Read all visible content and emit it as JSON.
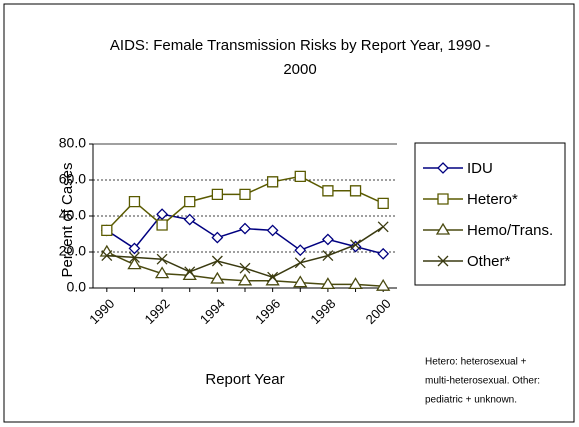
{
  "chart_data": {
    "type": "line",
    "title": [
      "AIDS: Female Transmission Risks by Report Year, 1990 -",
      "2000"
    ],
    "y_label": "Percent of Cases",
    "x_label": "Report Year",
    "note": [
      "Hetero: heterosexual +",
      "multi-heterosexual.  Other:",
      "pediatric + unknown."
    ],
    "categories": [
      "1990",
      null,
      "1992",
      null,
      "1994",
      null,
      "1996",
      null,
      "1998",
      null,
      "2000"
    ],
    "ylim": [
      0,
      80
    ],
    "yticks": [
      {
        "value": 0,
        "label": "0.0"
      },
      {
        "value": 20,
        "label": "20.0"
      },
      {
        "value": 40,
        "label": "40.0"
      },
      {
        "value": 60,
        "label": "60.0"
      },
      {
        "value": 80,
        "label": "80.0"
      }
    ],
    "grid": true,
    "legend": "right",
    "series": [
      {
        "name": "IDU",
        "color": "#000080",
        "marker": "diamond",
        "values": [
          32,
          22,
          41,
          38,
          28,
          33,
          32,
          21,
          27,
          23,
          19
        ]
      },
      {
        "name": "Hetero*",
        "color": "#5a5a00",
        "marker": "square",
        "values": [
          32,
          48,
          35,
          48,
          52,
          52,
          59,
          62,
          54,
          54,
          47
        ]
      },
      {
        "name": "Hemo/Trans.",
        "color": "#4a4a10",
        "marker": "triangle",
        "values": [
          20,
          13,
          8,
          7,
          5,
          4,
          4,
          3,
          2,
          2,
          1
        ]
      },
      {
        "name": "Other*",
        "color": "#3a3a10",
        "marker": "x",
        "values": [
          18,
          17,
          16,
          9,
          15,
          11,
          6,
          14,
          18,
          24,
          34
        ]
      }
    ]
  }
}
